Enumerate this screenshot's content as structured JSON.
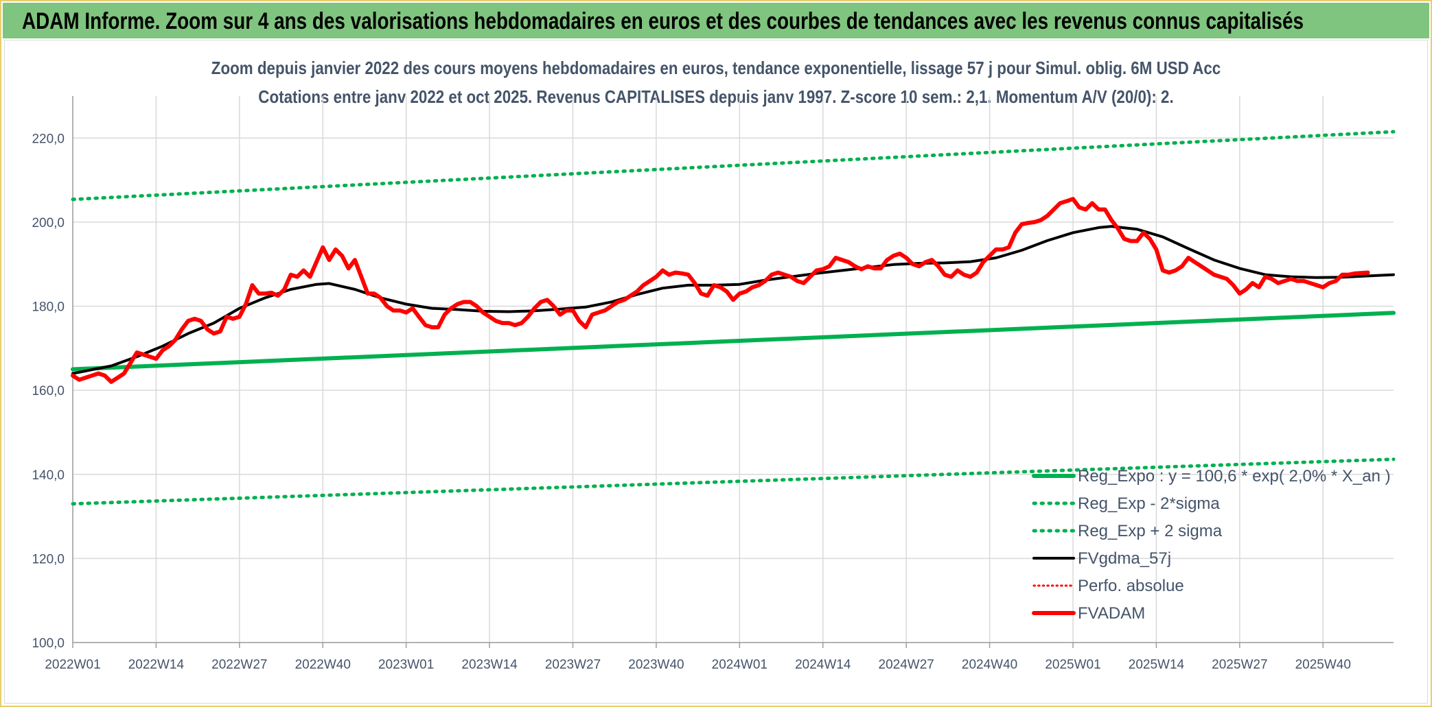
{
  "banner": {
    "title": "ADAM Informe. Zoom sur 4 ans des valorisations hebdomadaires en euros et des courbes de tendances avec les revenus connus capitalisés"
  },
  "chart_data": {
    "type": "line",
    "title": "Zoom depuis janvier 2022 des cours moyens hebdomadaires en euros, tendance exponentielle, lissage 57 j pour Simul. oblig. 6M USD Acc",
    "subtitle": "Cotations entre janv 2022 et oct 2025. Revenus CAPITALISES depuis janv 1997. Z-score 10 sem.: 2,1. Momentum A/V (20/0): 2.",
    "xlabel": "",
    "ylabel": "",
    "ylim": [
      100,
      230
    ],
    "yticks": [
      "100,0",
      "120,0",
      "140,0",
      "160,0",
      "180,0",
      "200,0",
      "220,0"
    ],
    "ytick_values": [
      100,
      120,
      140,
      160,
      180,
      200,
      220
    ],
    "x_range_weeks": [
      0,
      206
    ],
    "x_ticks": [
      "2022W01",
      "2022W14",
      "2022W27",
      "2022W40",
      "2023W01",
      "2023W14",
      "2023W27",
      "2023W40",
      "2024W01",
      "2024W14",
      "2024W27",
      "2024W40",
      "2025W01",
      "2025W14",
      "2025W27",
      "2025W40"
    ],
    "x_tick_weeks": [
      0,
      13,
      26,
      39,
      52,
      65,
      78,
      91,
      104,
      117,
      130,
      143,
      156,
      169,
      182,
      195
    ],
    "grid": true,
    "legend_position": "bottom-right",
    "series": [
      {
        "name": "Reg_Expo : y = 100,6 * exp( 2,0% *  X_an )",
        "color": "#00b050",
        "style": "solid",
        "width": 6,
        "points": [
          [
            0,
            165.0
          ],
          [
            206,
            178.4
          ]
        ]
      },
      {
        "name": "Reg_Exp - 2*sigma",
        "color": "#00b050",
        "style": "dotted",
        "width": 5,
        "points": [
          [
            0,
            133.0
          ],
          [
            206,
            143.6
          ]
        ]
      },
      {
        "name": "Reg_Exp + 2 sigma",
        "color": "#00b050",
        "style": "dotted",
        "width": 5,
        "points": [
          [
            0,
            205.4
          ],
          [
            206,
            221.5
          ]
        ]
      },
      {
        "name": "FVgdma_57j",
        "color": "#000000",
        "style": "solid",
        "width": 4,
        "points": [
          [
            0,
            164.0
          ],
          [
            6,
            165.8
          ],
          [
            10,
            168.0
          ],
          [
            14,
            170.5
          ],
          [
            18,
            173.5
          ],
          [
            22,
            176.0
          ],
          [
            26,
            179.5
          ],
          [
            30,
            182.0
          ],
          [
            34,
            184.0
          ],
          [
            38,
            185.2
          ],
          [
            40,
            185.4
          ],
          [
            44,
            184.0
          ],
          [
            48,
            182.0
          ],
          [
            52,
            180.5
          ],
          [
            56,
            179.5
          ],
          [
            60,
            179.2
          ],
          [
            64,
            178.8
          ],
          [
            68,
            178.7
          ],
          [
            72,
            178.9
          ],
          [
            76,
            179.3
          ],
          [
            80,
            179.8
          ],
          [
            84,
            181.0
          ],
          [
            88,
            182.8
          ],
          [
            92,
            184.3
          ],
          [
            96,
            185.0
          ],
          [
            100,
            185.0
          ],
          [
            104,
            185.2
          ],
          [
            108,
            186.2
          ],
          [
            112,
            187.0
          ],
          [
            116,
            187.8
          ],
          [
            120,
            188.5
          ],
          [
            124,
            189.2
          ],
          [
            128,
            189.9
          ],
          [
            132,
            190.2
          ],
          [
            136,
            190.3
          ],
          [
            140,
            190.6
          ],
          [
            144,
            191.5
          ],
          [
            148,
            193.3
          ],
          [
            152,
            195.6
          ],
          [
            156,
            197.5
          ],
          [
            160,
            198.7
          ],
          [
            162,
            199.0
          ],
          [
            166,
            198.3
          ],
          [
            170,
            196.5
          ],
          [
            174,
            193.7
          ],
          [
            178,
            191.0
          ],
          [
            182,
            189.0
          ],
          [
            186,
            187.5
          ],
          [
            190,
            187.0
          ],
          [
            194,
            186.8
          ],
          [
            198,
            186.9
          ],
          [
            202,
            187.2
          ],
          [
            206,
            187.5
          ]
        ]
      },
      {
        "name": "Perfo. absolue",
        "color": "#ff0000",
        "style": "dotted",
        "width": 3,
        "points": []
      },
      {
        "name": "FVADAM",
        "color": "#ff0000",
        "style": "solid",
        "width": 6,
        "points": [
          [
            0,
            163.5
          ],
          [
            1,
            162.5
          ],
          [
            3,
            163.5
          ],
          [
            4,
            164.0
          ],
          [
            5,
            163.5
          ],
          [
            6,
            162.0
          ],
          [
            7,
            163.0
          ],
          [
            8,
            164.0
          ],
          [
            9,
            166.5
          ],
          [
            10,
            169.0
          ],
          [
            11,
            168.5
          ],
          [
            12,
            168.0
          ],
          [
            13,
            167.5
          ],
          [
            14,
            169.5
          ],
          [
            15,
            170.5
          ],
          [
            16,
            172.0
          ],
          [
            17,
            174.5
          ],
          [
            18,
            176.5
          ],
          [
            19,
            177.0
          ],
          [
            20,
            176.5
          ],
          [
            21,
            174.5
          ],
          [
            22,
            173.5
          ],
          [
            23,
            174.0
          ],
          [
            24,
            177.5
          ],
          [
            25,
            177.0
          ],
          [
            26,
            177.5
          ],
          [
            27,
            180.5
          ],
          [
            28,
            185.0
          ],
          [
            29,
            183.0
          ],
          [
            30,
            183.0
          ],
          [
            31,
            183.2
          ],
          [
            32,
            182.5
          ],
          [
            33,
            184.0
          ],
          [
            34,
            187.5
          ],
          [
            35,
            187.0
          ],
          [
            36,
            188.5
          ],
          [
            37,
            187.0
          ],
          [
            38,
            190.5
          ],
          [
            39,
            194.0
          ],
          [
            40,
            191.0
          ],
          [
            41,
            193.5
          ],
          [
            42,
            192.0
          ],
          [
            43,
            189.0
          ],
          [
            44,
            191.0
          ],
          [
            45,
            187.0
          ],
          [
            46,
            183.0
          ],
          [
            47,
            183.0
          ],
          [
            48,
            182.0
          ],
          [
            49,
            180.0
          ],
          [
            50,
            179.0
          ],
          [
            51,
            179.0
          ],
          [
            52,
            178.5
          ],
          [
            53,
            179.5
          ],
          [
            54,
            177.5
          ],
          [
            55,
            175.5
          ],
          [
            56,
            175.0
          ],
          [
            57,
            175.0
          ],
          [
            58,
            178.0
          ],
          [
            59,
            179.5
          ],
          [
            60,
            180.5
          ],
          [
            61,
            181.0
          ],
          [
            62,
            181.0
          ],
          [
            63,
            180.0
          ],
          [
            64,
            178.5
          ],
          [
            65,
            177.5
          ],
          [
            66,
            176.5
          ],
          [
            67,
            176.0
          ],
          [
            68,
            176.0
          ],
          [
            69,
            175.5
          ],
          [
            70,
            176.0
          ],
          [
            71,
            177.5
          ],
          [
            72,
            179.5
          ],
          [
            73,
            181.0
          ],
          [
            74,
            181.5
          ],
          [
            75,
            180.0
          ],
          [
            76,
            178.0
          ],
          [
            77,
            179.0
          ],
          [
            78,
            179.0
          ],
          [
            79,
            176.5
          ],
          [
            80,
            175.0
          ],
          [
            81,
            178.0
          ],
          [
            82,
            178.5
          ],
          [
            83,
            179.0
          ],
          [
            84,
            180.0
          ],
          [
            85,
            181.0
          ],
          [
            86,
            181.5
          ],
          [
            87,
            182.5
          ],
          [
            88,
            183.5
          ],
          [
            89,
            185.0
          ],
          [
            90,
            186.0
          ],
          [
            91,
            187.0
          ],
          [
            92,
            188.5
          ],
          [
            93,
            187.5
          ],
          [
            94,
            188.0
          ],
          [
            95,
            187.8
          ],
          [
            96,
            187.5
          ],
          [
            97,
            185.5
          ],
          [
            98,
            183.0
          ],
          [
            99,
            182.5
          ],
          [
            100,
            185.0
          ],
          [
            101,
            184.5
          ],
          [
            102,
            183.5
          ],
          [
            103,
            181.5
          ],
          [
            104,
            183.0
          ],
          [
            105,
            183.5
          ],
          [
            106,
            184.5
          ],
          [
            107,
            185.0
          ],
          [
            108,
            186.0
          ],
          [
            109,
            187.5
          ],
          [
            110,
            188.0
          ],
          [
            111,
            187.5
          ],
          [
            112,
            187.0
          ],
          [
            113,
            186.0
          ],
          [
            114,
            185.5
          ],
          [
            115,
            187.0
          ],
          [
            116,
            188.5
          ],
          [
            117,
            188.8
          ],
          [
            118,
            189.5
          ],
          [
            119,
            191.5
          ],
          [
            120,
            191.0
          ],
          [
            121,
            190.5
          ],
          [
            122,
            189.5
          ],
          [
            123,
            188.8
          ],
          [
            124,
            189.5
          ],
          [
            125,
            189.0
          ],
          [
            126,
            189.0
          ],
          [
            127,
            191.0
          ],
          [
            128,
            192.0
          ],
          [
            129,
            192.5
          ],
          [
            130,
            191.5
          ],
          [
            131,
            190.0
          ],
          [
            132,
            189.5
          ],
          [
            133,
            190.5
          ],
          [
            134,
            191.0
          ],
          [
            135,
            189.5
          ],
          [
            136,
            187.5
          ],
          [
            137,
            187.0
          ],
          [
            138,
            188.5
          ],
          [
            139,
            187.5
          ],
          [
            140,
            187.0
          ],
          [
            141,
            188.0
          ],
          [
            142,
            190.5
          ],
          [
            143,
            192.0
          ],
          [
            144,
            193.5
          ],
          [
            145,
            193.5
          ],
          [
            146,
            194.0
          ],
          [
            147,
            197.5
          ],
          [
            148,
            199.5
          ],
          [
            149,
            199.8
          ],
          [
            150,
            200.0
          ],
          [
            151,
            200.5
          ],
          [
            152,
            201.5
          ],
          [
            153,
            203.0
          ],
          [
            154,
            204.5
          ],
          [
            155,
            205.0
          ],
          [
            156,
            205.5
          ],
          [
            157,
            203.5
          ],
          [
            158,
            203.0
          ],
          [
            159,
            204.5
          ],
          [
            160,
            203.0
          ],
          [
            161,
            203.0
          ],
          [
            162,
            200.5
          ],
          [
            163,
            198.5
          ],
          [
            164,
            196.0
          ],
          [
            165,
            195.5
          ],
          [
            166,
            195.5
          ],
          [
            167,
            197.5
          ],
          [
            168,
            196.0
          ],
          [
            169,
            193.5
          ],
          [
            170,
            188.5
          ],
          [
            171,
            188.0
          ],
          [
            172,
            188.5
          ],
          [
            173,
            189.5
          ],
          [
            174,
            191.5
          ],
          [
            175,
            190.5
          ],
          [
            176,
            189.5
          ],
          [
            177,
            188.5
          ],
          [
            178,
            187.5
          ],
          [
            179,
            187.0
          ],
          [
            180,
            186.5
          ],
          [
            181,
            185.0
          ],
          [
            182,
            183.0
          ],
          [
            183,
            184.0
          ],
          [
            184,
            185.5
          ],
          [
            185,
            184.5
          ],
          [
            186,
            187.0
          ],
          [
            187,
            186.5
          ],
          [
            188,
            185.5
          ],
          [
            189,
            186.0
          ],
          [
            190,
            186.5
          ],
          [
            191,
            186.0
          ],
          [
            192,
            186.0
          ],
          [
            193,
            185.5
          ],
          [
            194,
            185.0
          ],
          [
            195,
            184.5
          ],
          [
            196,
            185.5
          ],
          [
            197,
            186.0
          ],
          [
            198,
            187.5
          ],
          [
            199,
            187.5
          ],
          [
            200,
            187.8
          ],
          [
            202,
            188.0
          ]
        ]
      }
    ]
  }
}
